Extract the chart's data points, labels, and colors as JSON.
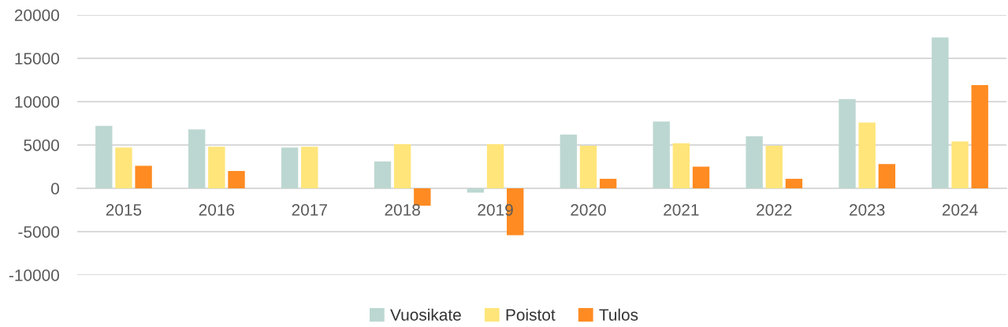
{
  "chart_data": {
    "type": "bar",
    "categories": [
      "2015",
      "2016",
      "2017",
      "2018",
      "2019",
      "2020",
      "2021",
      "2022",
      "2023",
      "2024"
    ],
    "series": [
      {
        "name": "Vuosikate",
        "color": "#bcd7d1",
        "values": [
          7200,
          6800,
          4700,
          3100,
          -500,
          6200,
          7700,
          6000,
          10300,
          17400
        ]
      },
      {
        "name": "Poistot",
        "color": "#ffe57a",
        "values": [
          4700,
          4800,
          4800,
          5100,
          5100,
          4900,
          5200,
          4900,
          7600,
          5400
        ]
      },
      {
        "name": "Tulos",
        "color": "#ff8b22",
        "values": [
          2600,
          2000,
          0,
          -2000,
          -5400,
          1100,
          2500,
          1100,
          2800,
          11900
        ]
      }
    ],
    "ylim": [
      -10000,
      20000
    ],
    "yticks": [
      -10000,
      -5000,
      0,
      5000,
      10000,
      15000,
      20000
    ],
    "grid": "y",
    "legend": "bottom"
  }
}
